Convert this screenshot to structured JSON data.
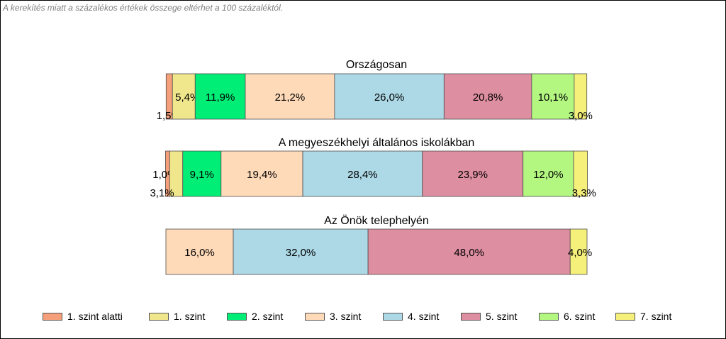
{
  "note": "A kerekítés miatt a  százalékos értékek összege eltérhet a 100 százaléktól.",
  "chart_data": {
    "type": "bar",
    "stacked": true,
    "orientation": "horizontal",
    "unit": "%",
    "categories": [
      "1. szint alatti",
      "1. szint",
      "2. szint",
      "3. szint",
      "4. szint",
      "5. szint",
      "6. szint",
      "7. szint"
    ],
    "colors": [
      "#f5a07a",
      "#f0e68c",
      "#00ee76",
      "#ffdab9",
      "#add8e6",
      "#dd8ea0",
      "#b3f781",
      "#f5f07a"
    ],
    "legend_position": "bottom",
    "groups": [
      {
        "title": "Országosan",
        "values": [
          1.5,
          5.4,
          11.9,
          21.2,
          26.0,
          20.8,
          10.1,
          3.0
        ],
        "labels": [
          "1,5%",
          "5,4%",
          "11,9%",
          "21,2%",
          "26,0%",
          "20,8%",
          "10,1%",
          "3,0%"
        ]
      },
      {
        "title": "A megyeszékhelyi általános iskolákban",
        "values": [
          1.0,
          3.1,
          9.1,
          19.4,
          28.4,
          23.9,
          12.0,
          3.3
        ],
        "labels": [
          "1,0%",
          "3,1%",
          "9,1%",
          "19,4%",
          "28,4%",
          "23,9%",
          "12,0%",
          "3,3%"
        ]
      },
      {
        "title": "Az Önök telephelyén",
        "values": [
          0,
          0,
          0,
          16.0,
          32.0,
          48.0,
          0,
          4.0
        ],
        "labels": [
          "",
          "",
          "",
          "16,0%",
          "32,0%",
          "48,0%",
          "",
          "4,0%"
        ]
      }
    ]
  }
}
